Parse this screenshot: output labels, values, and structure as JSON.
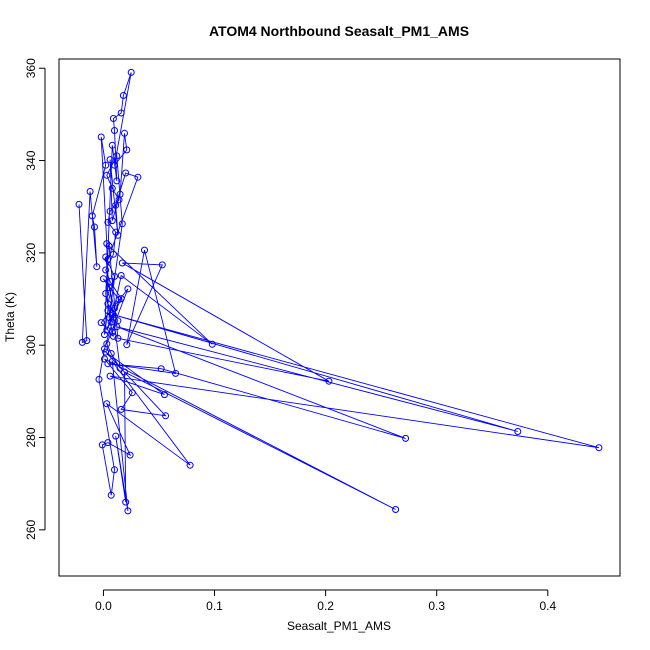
{
  "chart_data": {
    "type": "line",
    "title": "ATOM4 Northbound Seasalt_PM1_AMS",
    "xlabel": "Seasalt_PM1_AMS",
    "ylabel": "Theta (K)",
    "xlim": [
      -0.04,
      0.465
    ],
    "ylim": [
      250,
      362
    ],
    "xticks": [
      0.0,
      0.1,
      0.2,
      0.3,
      0.4
    ],
    "xtick_labels": [
      "0.0",
      "0.1",
      "0.2",
      "0.3",
      "0.4"
    ],
    "yticks": [
      260,
      280,
      300,
      320,
      340,
      360
    ],
    "ytick_labels": [
      "260",
      "280",
      "300",
      "320",
      "340",
      "360"
    ],
    "grid": false,
    "marker": "open-circle",
    "series_color": "#0000ff",
    "series": [
      {
        "points": [
          [
            -0.022,
            330.5
          ],
          [
            -0.015,
            301.0
          ],
          [
            -0.019,
            300.6
          ],
          [
            -0.012,
            333.3
          ],
          [
            -0.006,
            317.0
          ],
          [
            -0.008,
            325.6
          ],
          [
            -0.01,
            328.0
          ],
          [
            0.002,
            339.0
          ],
          [
            -0.002,
            345.1
          ],
          [
            0.003,
            322.0
          ],
          [
            0.004,
            307.5
          ],
          [
            0.001,
            302.3
          ],
          [
            0.008,
            343.3
          ],
          [
            0.012,
            335.6
          ],
          [
            0.01,
            346.5
          ],
          [
            0.009,
            349.1
          ],
          [
            0.016,
            350.3
          ],
          [
            0.018,
            354.1
          ],
          [
            0.025,
            359.1
          ],
          [
            0.01,
            339.0
          ],
          [
            0.021,
            342.3
          ],
          [
            0.019,
            345.9
          ],
          [
            0.015,
            332.7
          ],
          [
            0.008,
            327.0
          ],
          [
            0.006,
            340.2
          ],
          [
            0.013,
            323.8
          ],
          [
            0.011,
            330.3
          ],
          [
            0.02,
            337.3
          ],
          [
            0.031,
            336.4
          ],
          [
            0.004,
            318.6
          ],
          [
            0.002,
            311.2
          ],
          [
            0.007,
            305.0
          ],
          [
            0.016,
            315.1
          ],
          [
            0.098,
            300.2
          ],
          [
            0.005,
            321.5
          ],
          [
            0.013,
            301.5
          ],
          [
            0.203,
            292.2
          ],
          [
            0.017,
            317.8
          ],
          [
            0.053,
            317.4
          ],
          [
            0.021,
            300.1
          ],
          [
            0.037,
            320.6
          ],
          [
            0.065,
            293.9
          ],
          [
            0.004,
            296.0
          ],
          [
            0.052,
            294.9
          ],
          [
            0.272,
            279.8
          ],
          [
            0.012,
            304.0
          ],
          [
            0.373,
            281.3
          ],
          [
            0.009,
            306.6
          ],
          [
            0.446,
            277.8
          ],
          [
            0.006,
            293.3
          ],
          [
            0.055,
            289.3
          ],
          [
            0.002,
            298.5
          ],
          [
            0.056,
            284.7
          ],
          [
            0.016,
            286.1
          ],
          [
            0.026,
            289.7
          ],
          [
            0.001,
            297.0
          ],
          [
            0.263,
            264.4
          ],
          [
            0.019,
            294.2
          ],
          [
            0.02,
            266.0
          ],
          [
            0.011,
            280.3
          ],
          [
            0.022,
            264.1
          ],
          [
            0.008,
            296.5
          ],
          [
            0.078,
            274.0
          ],
          [
            0.003,
            287.3
          ],
          [
            0.024,
            276.2
          ],
          [
            0.004,
            278.9
          ],
          [
            -0.001,
            278.4
          ],
          [
            0.007,
            267.5
          ],
          [
            0.01,
            273.0
          ],
          [
            -0.004,
            292.6
          ],
          [
            0.001,
            299.2
          ],
          [
            0.014,
            309.9
          ],
          [
            0.0,
            314.4
          ],
          [
            0.005,
            312.5
          ],
          [
            0.01,
            308.0
          ],
          [
            0.003,
            303.3
          ],
          [
            0.016,
            310.1
          ],
          [
            0.006,
            313.8
          ],
          [
            0.002,
            316.3
          ],
          [
            0.009,
            319.7
          ],
          [
            0.011,
            324.5
          ],
          [
            0.004,
            326.6
          ],
          [
            0.006,
            329.0
          ],
          [
            0.014,
            331.5
          ],
          [
            0.008,
            334.0
          ],
          [
            0.003,
            336.8
          ],
          [
            0.012,
            341.0
          ],
          [
            0.017,
            326.3
          ],
          [
            0.005,
            306.0
          ],
          [
            0.009,
            301.9
          ],
          [
            -0.002,
            304.9
          ],
          [
            0.022,
            312.2
          ],
          [
            0.003,
            300.3
          ],
          [
            0.007,
            298.2
          ],
          [
            0.015,
            295.0
          ],
          [
            0.002,
            319.1
          ],
          [
            0.01,
            314.9
          ],
          [
            0.004,
            309.0
          ],
          [
            0.013,
            305.3
          ],
          [
            0.008,
            302.8
          ]
        ]
      }
    ]
  }
}
